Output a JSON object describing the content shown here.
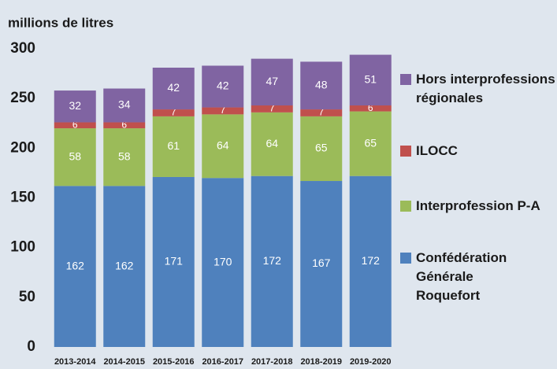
{
  "chart_data": {
    "type": "stacked_bar",
    "ylabel": "millions de litres",
    "categories": [
      "2013-2014",
      "2014-2015",
      "2015-2016",
      "2016-2017",
      "2017-2018",
      "2018-2019",
      "2019-2020"
    ],
    "series": [
      {
        "name": "Confédération Générale Roquefort",
        "color": "#4f81bd",
        "values": [
          162,
          162,
          171,
          170,
          172,
          167,
          172
        ]
      },
      {
        "name": "Interprofession P-A",
        "color": "#9bbb59",
        "values": [
          58,
          58,
          61,
          64,
          64,
          65,
          65
        ]
      },
      {
        "name": "ILOCC",
        "color": "#c0504d",
        "values": [
          6,
          6,
          7,
          7,
          7,
          7,
          6
        ]
      },
      {
        "name": "Hors interprofessions régionales",
        "color": "#8064a2",
        "values": [
          32,
          34,
          42,
          42,
          47,
          48,
          51
        ]
      }
    ],
    "ylim": [
      0,
      300
    ],
    "yticks": [
      0,
      50,
      100,
      150,
      200,
      250,
      300
    ],
    "grid": false,
    "legend": "right"
  }
}
